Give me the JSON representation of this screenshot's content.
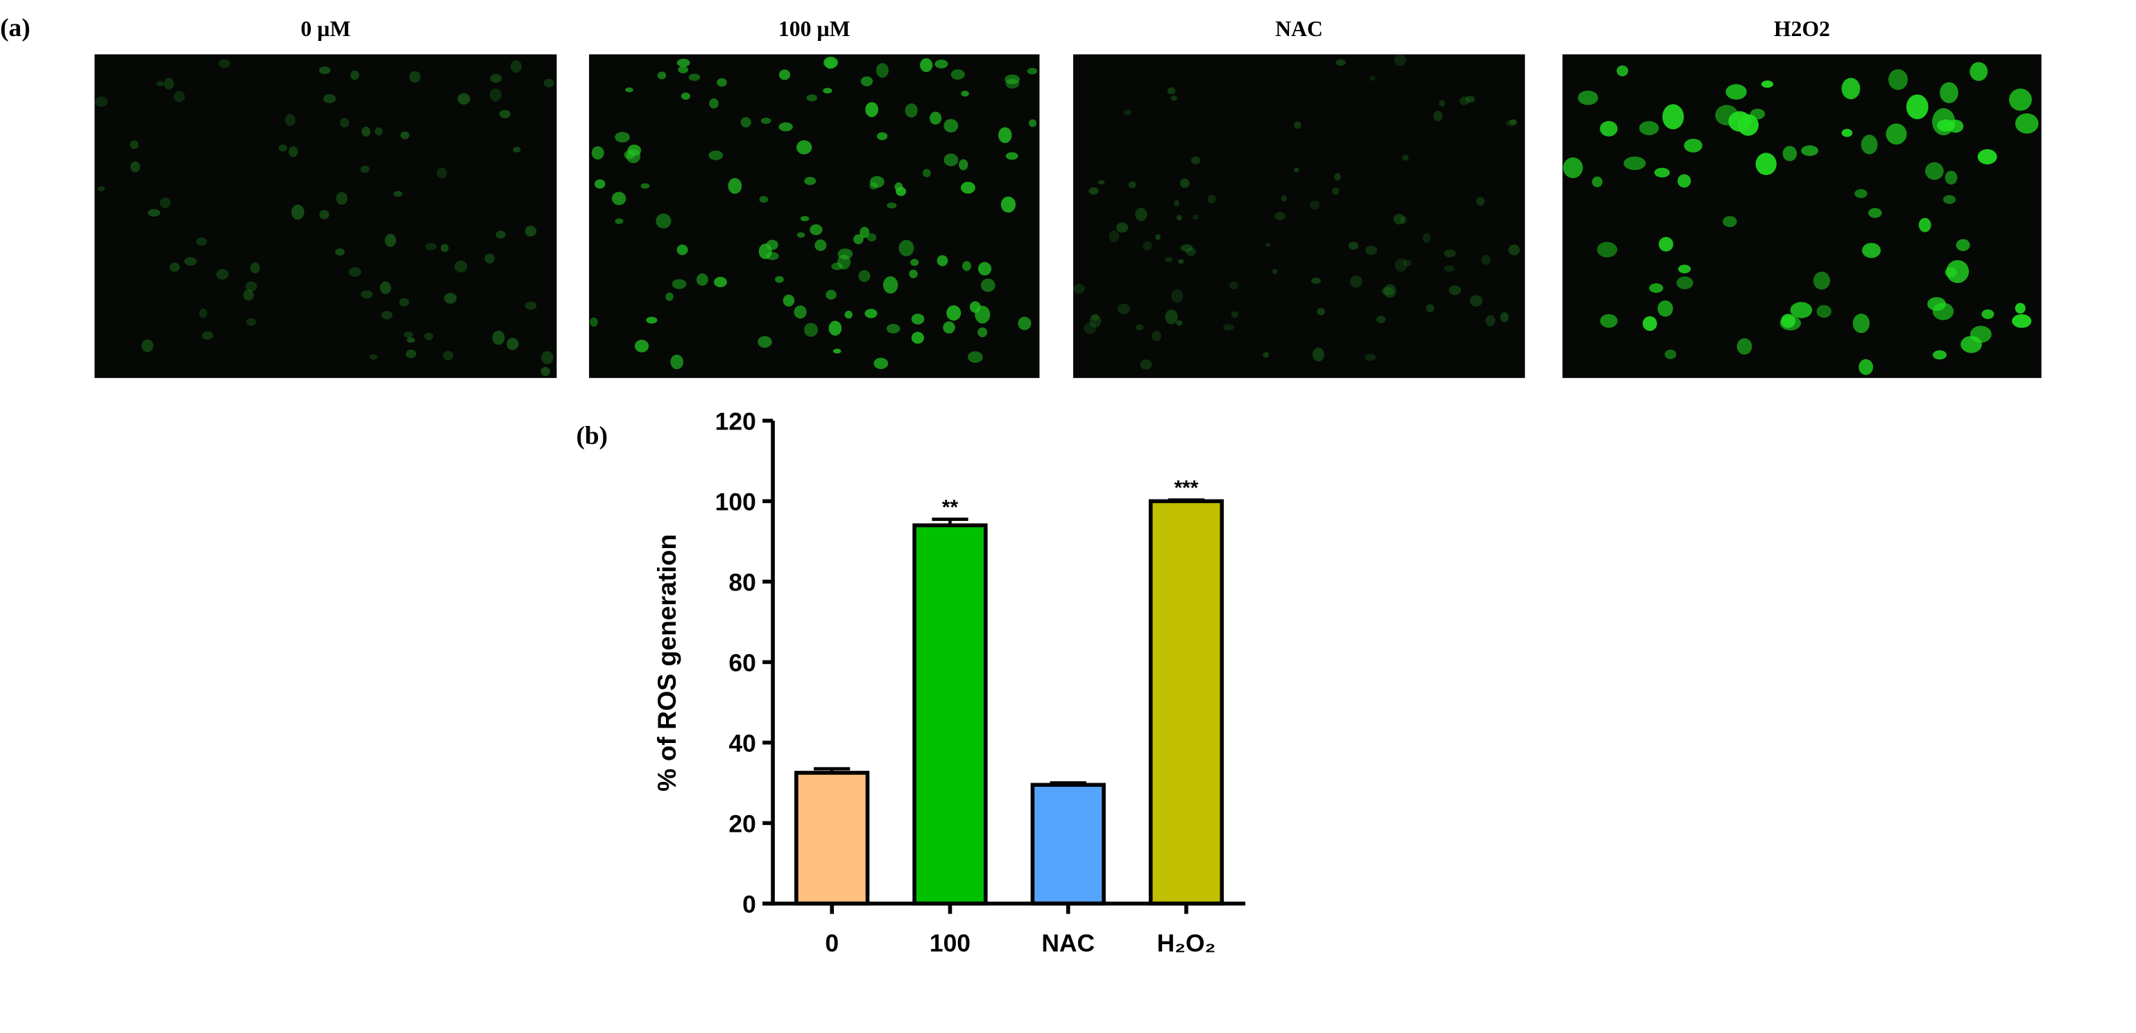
{
  "panel_a": {
    "label": "(a)",
    "images": [
      {
        "title": "0 µM"
      },
      {
        "title": "100 µM"
      },
      {
        "title": "NAC"
      },
      {
        "title": "H2O2"
      }
    ]
  },
  "chart_data": {
    "type": "bar",
    "panel_label": "(b)",
    "ylabel": "% of ROS generation",
    "categories": [
      "0",
      "100",
      "NAC",
      "H₂O₂"
    ],
    "values": [
      32.5,
      94,
      29.5,
      100
    ],
    "errors": [
      1,
      1.5,
      0.5,
      0.3
    ],
    "significance": [
      null,
      "**",
      null,
      "***"
    ],
    "colors": [
      "#FFC080",
      "#00C000",
      "#55A5FF",
      "#C0C000"
    ],
    "ylim": [
      0,
      120
    ],
    "yticks": [
      0,
      20,
      40,
      60,
      80,
      100,
      120
    ]
  }
}
